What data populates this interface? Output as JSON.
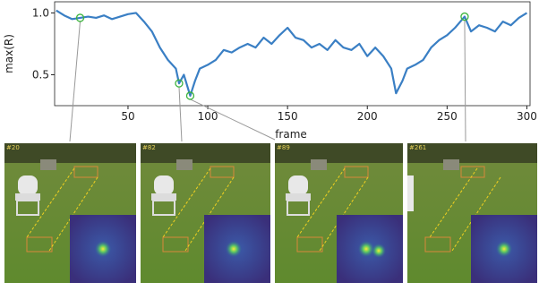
{
  "chart_data": {
    "type": "line",
    "y_label": "max(R)",
    "x_label": "frame",
    "x": [
      5,
      10,
      15,
      20,
      25,
      30,
      35,
      40,
      45,
      50,
      55,
      60,
      65,
      70,
      75,
      80,
      82,
      85,
      89,
      92,
      95,
      100,
      105,
      110,
      115,
      120,
      125,
      130,
      135,
      140,
      145,
      150,
      155,
      160,
      165,
      170,
      175,
      180,
      185,
      190,
      195,
      200,
      205,
      210,
      215,
      218,
      222,
      225,
      230,
      235,
      240,
      245,
      250,
      255,
      261,
      265,
      270,
      275,
      280,
      285,
      290,
      295,
      300
    ],
    "series": [
      {
        "name": "max(R)",
        "color": "#3a7fc4",
        "values": [
          1.02,
          0.98,
          0.95,
          0.96,
          0.97,
          0.96,
          0.98,
          0.95,
          0.97,
          0.99,
          1.0,
          0.93,
          0.85,
          0.72,
          0.62,
          0.55,
          0.43,
          0.5,
          0.33,
          0.45,
          0.55,
          0.58,
          0.62,
          0.7,
          0.68,
          0.72,
          0.75,
          0.72,
          0.8,
          0.75,
          0.82,
          0.88,
          0.8,
          0.78,
          0.72,
          0.75,
          0.7,
          0.78,
          0.72,
          0.7,
          0.75,
          0.65,
          0.72,
          0.65,
          0.55,
          0.35,
          0.45,
          0.55,
          0.58,
          0.62,
          0.72,
          0.78,
          0.82,
          0.88,
          0.97,
          0.85,
          0.9,
          0.88,
          0.85,
          0.93,
          0.9,
          0.96,
          1.0
        ]
      }
    ],
    "highlights": {
      "x": [
        20,
        82,
        89,
        261
      ],
      "y": [
        0.96,
        0.43,
        0.33,
        0.97
      ],
      "color": "#3cb43c"
    },
    "xlim": [
      4,
      302
    ],
    "ylim": [
      0.25,
      1.09
    ],
    "xticks": [
      50,
      100,
      150,
      200,
      250,
      300
    ],
    "yticks": [
      0.5,
      {
        "value": 1,
        "label": "1.0"
      }
    ]
  },
  "frames": [
    {
      "label": "#20"
    },
    {
      "label": "#82"
    },
    {
      "label": "#89"
    },
    {
      "label": "#261"
    }
  ]
}
